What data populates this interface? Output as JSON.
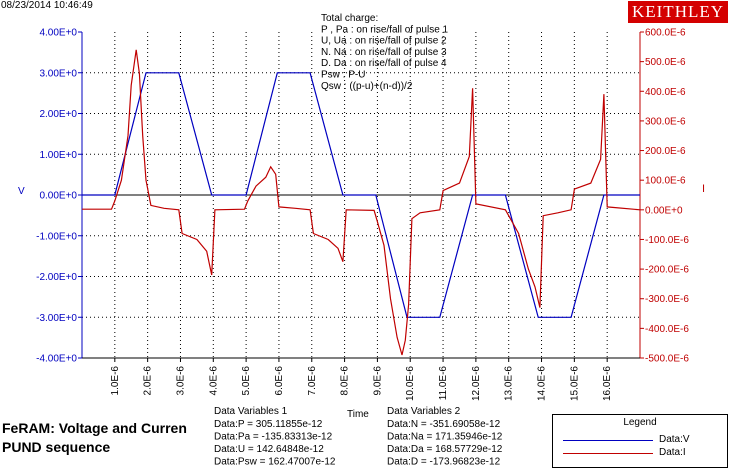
{
  "timestamp": "08/23/2014 10:46:49",
  "logo_text": "KEITHLEY",
  "annotation": {
    "lines": [
      "Total charge:",
      "P , Pa  :  on rise/fall of pulse 1",
      "U, Ua   :  on rise/fall of pulse 2",
      "N. Na   :  on rise/fall of pulse 3",
      "D. Da   :  on rise/fall of pulse 4",
      "Psw :   P-U",
      "Qsw :   ((p-u)+(n-d))/2"
    ]
  },
  "title_line1": "FeRAM: Voltage and Curren",
  "title_line2": "PUND sequence",
  "data_variables_1": {
    "heading": "Data Variables 1",
    "rows": [
      "Data:P = 305.11855e-12",
      "Data:Pa = -135.83313e-12",
      "Data:U = 142.64848e-12",
      "Data:Psw = 162.47007e-12"
    ]
  },
  "data_variables_2": {
    "heading": "Data Variables 2",
    "rows": [
      "Data:N = -351.69058e-12",
      "Data:Na = 171.35946e-12",
      "Data:Da = 168.57729e-12",
      "Data:D = -173.96823e-12"
    ]
  },
  "legend": {
    "title": "Legend",
    "items": [
      {
        "label": "Data:V",
        "color": "#0000c0"
      },
      {
        "label": "Data:I",
        "color": "#c00000"
      }
    ]
  },
  "chart_data": {
    "type": "line",
    "xlabel": "Time",
    "ylabel_left": "V",
    "ylabel_right": "I",
    "xlim": [
      0,
      1.7e-05
    ],
    "ylim_left": [
      -4,
      4
    ],
    "ylim_right": [
      -0.0005,
      0.0006
    ],
    "x_ticks": [
      "1.0E-6",
      "2.0E-6",
      "3.0E-6",
      "4.0E-6",
      "5.0E-6",
      "6.0E-6",
      "7.0E-6",
      "8.0E-6",
      "9.0E-6",
      "10.0E-6",
      "11.0E-6",
      "12.0E-6",
      "13.0E-6",
      "14.0E-6",
      "15.0E-6",
      "16.0E-6"
    ],
    "y_left_ticks": [
      "4.00E+0",
      "3.00E+0",
      "2.00E+0",
      "1.00E+0",
      "0.00E+0",
      "-1.00E+0",
      "-2.00E+0",
      "-3.00E+0",
      "-4.00E+0"
    ],
    "y_right_ticks": [
      "600.0E-6",
      "500.0E-6",
      "400.0E-6",
      "300.0E-6",
      "200.0E-6",
      "100.0E-6",
      "0.00E+0",
      "-100.0E-6",
      "-200.0E-6",
      "-300.0E-6",
      "-400.0E-6",
      "-500.0E-6"
    ],
    "grid": true,
    "series": [
      {
        "name": "Data:V",
        "axis": "left",
        "color": "#0000c0",
        "x": [
          0,
          1e-06,
          1.95e-06,
          2.95e-06,
          3.95e-06,
          5e-06,
          5.95e-06,
          6.95e-06,
          7.95e-06,
          8.95e-06,
          9.9e-06,
          1.09e-05,
          1.19e-05,
          1.29e-05,
          1.39e-05,
          1.49e-05,
          1.59e-05,
          1.7e-05
        ],
        "y": [
          0,
          0,
          3.0,
          3.0,
          0,
          0,
          3.0,
          3.0,
          0,
          0,
          -3.0,
          -3.0,
          0,
          0,
          -3.0,
          -3.0,
          0,
          0
        ]
      },
      {
        "name": "Data:I",
        "axis": "right",
        "color": "#c00000",
        "x": [
          0,
          9e-07,
          1e-06,
          1.2e-06,
          1.4e-06,
          1.5e-06,
          1.65e-06,
          1.75e-06,
          1.85e-06,
          1.95e-06,
          2.1e-06,
          2.5e-06,
          2.95e-06,
          3.05e-06,
          3.5e-06,
          3.8e-06,
          3.95e-06,
          4.05e-06,
          4.95e-06,
          5.05e-06,
          5.3e-06,
          5.6e-06,
          5.75e-06,
          5.9e-06,
          6e-06,
          6.5e-06,
          6.95e-06,
          7.05e-06,
          7.5e-06,
          7.8e-06,
          7.95e-06,
          8.05e-06,
          8.9e-06,
          9e-06,
          9.2e-06,
          9.4e-06,
          9.6e-06,
          9.75e-06,
          9.85e-06,
          9.95e-06,
          1.005e-05,
          1.03e-05,
          1.09e-05,
          1.1e-05,
          1.15e-05,
          1.18e-05,
          1.19e-05,
          1.2e-05,
          1.29e-05,
          1.3e-05,
          1.33e-05,
          1.36e-05,
          1.38e-05,
          1.395e-05,
          1.405e-05,
          1.45e-05,
          1.49e-05,
          1.5e-05,
          1.55e-05,
          1.58e-05,
          1.59e-05,
          1.6e-05,
          1.7e-05
        ],
        "y": [
          2e-06,
          2e-06,
          3e-05,
          0.0001,
          0.00025,
          0.00042,
          0.00054,
          0.00046,
          0.00025,
          0.0001,
          1.5e-05,
          5e-06,
          0,
          -8e-05,
          -0.0001,
          -0.00014,
          -0.00022,
          0,
          2e-06,
          3e-05,
          8e-05,
          0.00011,
          0.000145,
          0.00012,
          1e-05,
          5e-06,
          0,
          -8e-05,
          -0.0001,
          -0.00013,
          -0.000175,
          0,
          -2e-06,
          -4e-05,
          -0.00012,
          -0.0003,
          -0.00043,
          -0.00049,
          -0.00044,
          -0.00032,
          -3e-05,
          -1e-05,
          0,
          6.5e-05,
          9e-05,
          0.00018,
          0.00041,
          2e-05,
          0,
          -2e-05,
          -8e-05,
          -0.0002,
          -0.00026,
          -0.00033,
          -2e-05,
          -1e-05,
          0,
          7e-05,
          9e-05,
          0.00017,
          0.00039,
          1e-05,
          0
        ]
      }
    ]
  }
}
